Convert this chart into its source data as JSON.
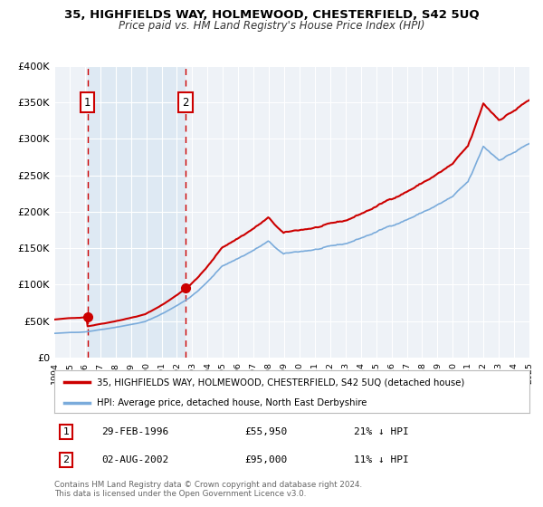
{
  "title": "35, HIGHFIELDS WAY, HOLMEWOOD, CHESTERFIELD, S42 5UQ",
  "subtitle": "Price paid vs. HM Land Registry's House Price Index (HPI)",
  "background_color": "#ffffff",
  "plot_bg_color": "#eef2f7",
  "grid_color": "#ffffff",
  "legend_label_red": "35, HIGHFIELDS WAY, HOLMEWOOD, CHESTERFIELD, S42 5UQ (detached house)",
  "legend_label_blue": "HPI: Average price, detached house, North East Derbyshire",
  "sale1_date": "29-FEB-1996",
  "sale1_price": "£55,950",
  "sale1_hpi": "21% ↓ HPI",
  "sale1_year": 1996.16,
  "sale1_value": 55950,
  "sale2_date": "02-AUG-2002",
  "sale2_price": "£95,000",
  "sale2_hpi": "11% ↓ HPI",
  "sale2_year": 2002.58,
  "sale2_value": 95000,
  "yticks": [
    0,
    50000,
    100000,
    150000,
    200000,
    250000,
    300000,
    350000,
    400000
  ],
  "ytick_labels": [
    "£0",
    "£50K",
    "£100K",
    "£150K",
    "£200K",
    "£250K",
    "£300K",
    "£350K",
    "£400K"
  ],
  "xmin": 1994,
  "xmax": 2025,
  "ymin": 0,
  "ymax": 400000,
  "copyright_text": "Contains HM Land Registry data © Crown copyright and database right 2024.\nThis data is licensed under the Open Government Licence v3.0.",
  "red_color": "#cc0000",
  "blue_color": "#7aabdb",
  "sale_dot_color": "#cc0000",
  "vline_color": "#cc0000",
  "shade_color": "#d8e6f2"
}
